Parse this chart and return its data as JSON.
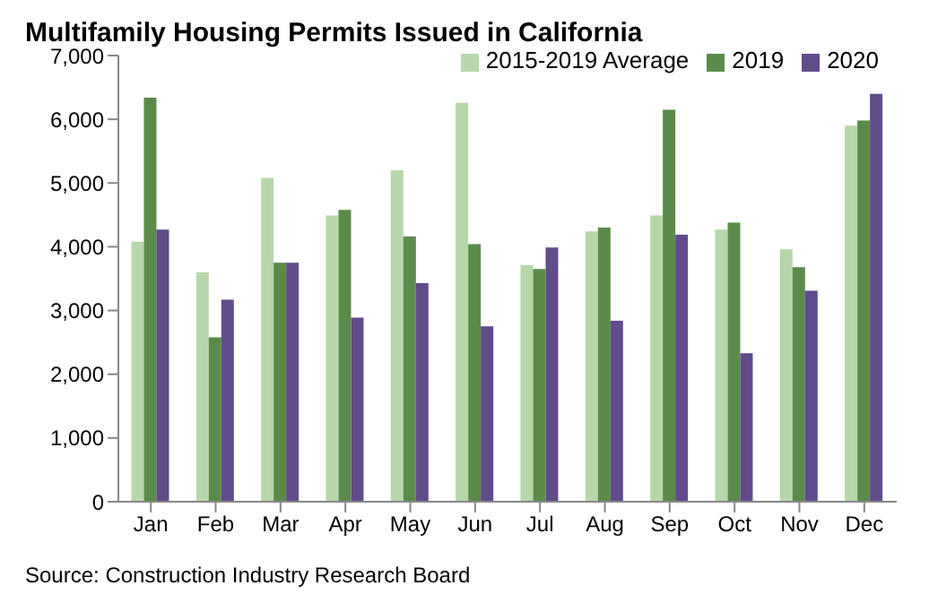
{
  "chart_data": {
    "type": "bar",
    "title": "Multifamily Housing Permits Issued in California",
    "categories": [
      "Jan",
      "Feb",
      "Mar",
      "Apr",
      "May",
      "Jun",
      "Jul",
      "Aug",
      "Sep",
      "Oct",
      "Nov",
      "Dec"
    ],
    "series": [
      {
        "name": "2015-2019 Average",
        "color": "#b7d7aa",
        "values": [
          4080,
          3600,
          5080,
          4490,
          5200,
          6260,
          3710,
          4240,
          4490,
          4270,
          3960,
          5900
        ]
      },
      {
        "name": "2019",
        "color": "#5a8b4b",
        "values": [
          6340,
          2580,
          3750,
          4580,
          4160,
          4040,
          3650,
          4300,
          6150,
          4380,
          3680,
          5980
        ]
      },
      {
        "name": "2020",
        "color": "#604c8a",
        "values": [
          4270,
          3170,
          3750,
          2890,
          3430,
          2750,
          3990,
          2840,
          4190,
          2330,
          3310,
          6400
        ]
      }
    ],
    "ylim": [
      0,
      7000
    ],
    "yticks": [
      0,
      {
        "value": 1000,
        "label": "1,000"
      },
      {
        "value": 2000,
        "label": "2,000"
      },
      {
        "value": 3000,
        "label": "3,000"
      },
      {
        "value": 4000,
        "label": "4,000"
      },
      {
        "value": 5000,
        "label": "5,000"
      },
      {
        "value": 6000,
        "label": "6,000"
      },
      {
        "value": 7000,
        "label": "7,000"
      }
    ],
    "grid": false,
    "legend": "top right",
    "annotations": [
      "Source: Construction Industry Research Board"
    ]
  }
}
